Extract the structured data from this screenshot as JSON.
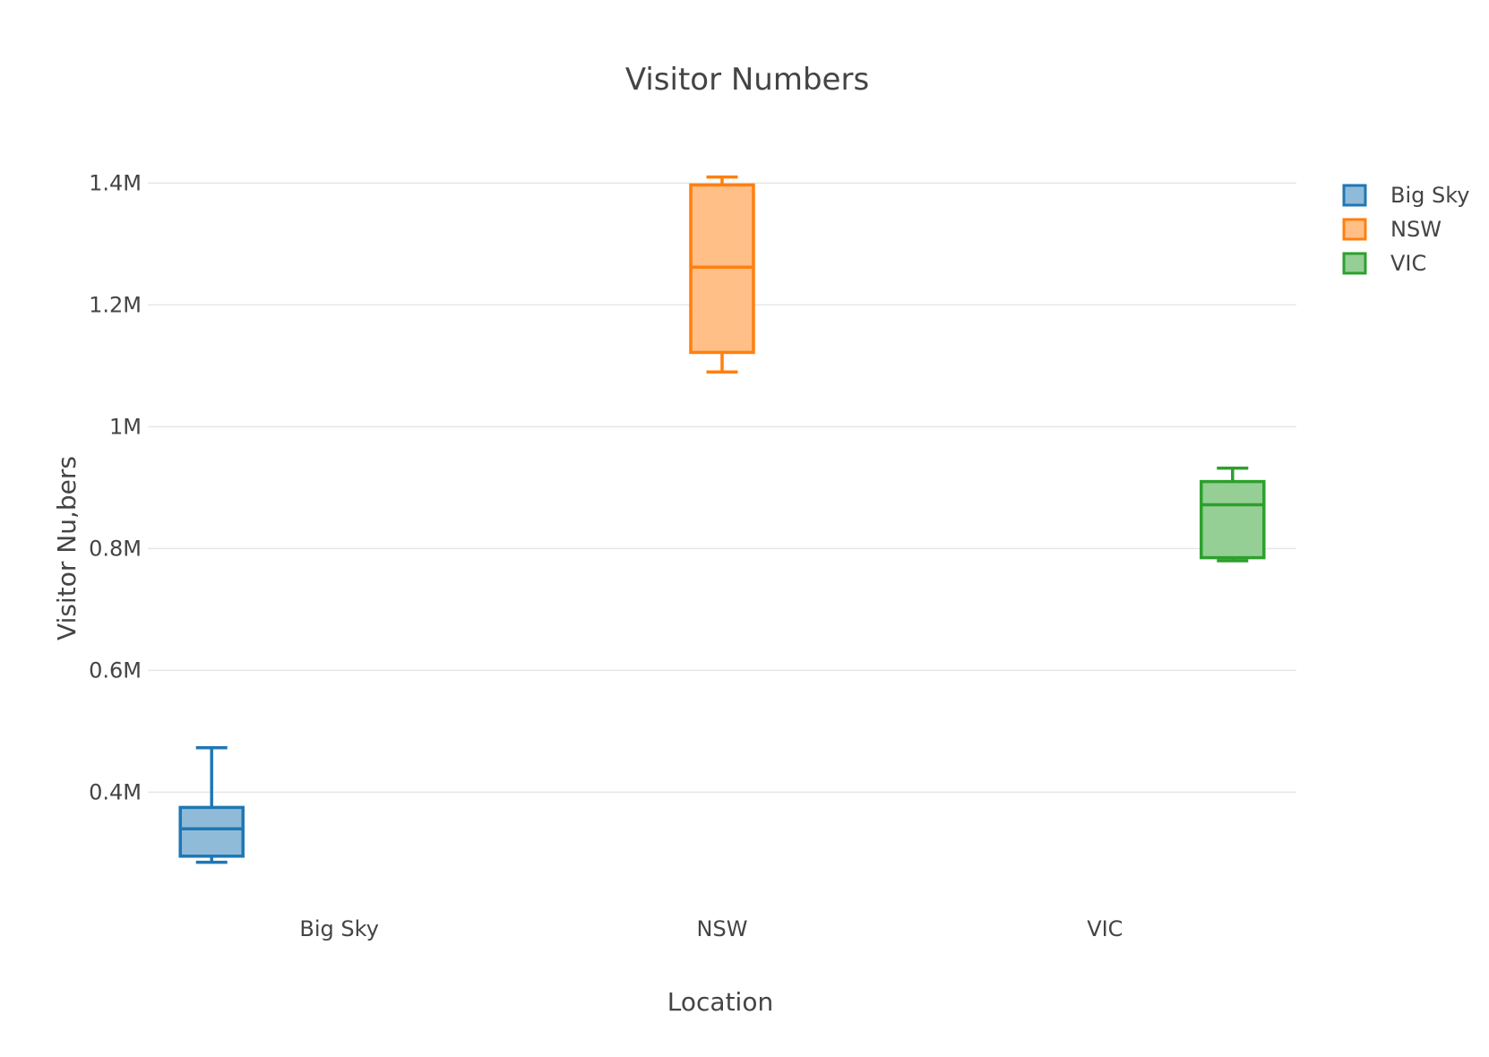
{
  "chart_data": {
    "type": "box",
    "title": "Visitor Numbers",
    "xlabel": "Location",
    "ylabel": "Visitor Nu,bers",
    "categories": [
      "Big Sky",
      "NSW",
      "VIC"
    ],
    "ylim": [
      230000,
      1480000
    ],
    "yticks": [
      400000,
      600000,
      800000,
      1000000,
      1200000,
      1400000
    ],
    "ytick_labels": [
      "0.4M",
      "0.6M",
      "0.8M",
      "1M",
      "1.2M",
      "1.4M"
    ],
    "grid": true,
    "legend_position": "top-right",
    "series": [
      {
        "name": "Big Sky",
        "color": "#1f77b4",
        "fill": "#8fbbd9",
        "min": 285000,
        "q1": 295000,
        "median": 340000,
        "q3": 375000,
        "max": 473000
      },
      {
        "name": "NSW",
        "color": "#ff7f0e",
        "fill": "#ffbf86",
        "min": 1090000,
        "q1": 1122000,
        "median": 1262000,
        "q3": 1397000,
        "max": 1410000
      },
      {
        "name": "VIC",
        "color": "#2ca02c",
        "fill": "#95cf95",
        "min": 780000,
        "q1": 785000,
        "median": 872000,
        "q3": 910000,
        "max": 932000
      }
    ]
  }
}
